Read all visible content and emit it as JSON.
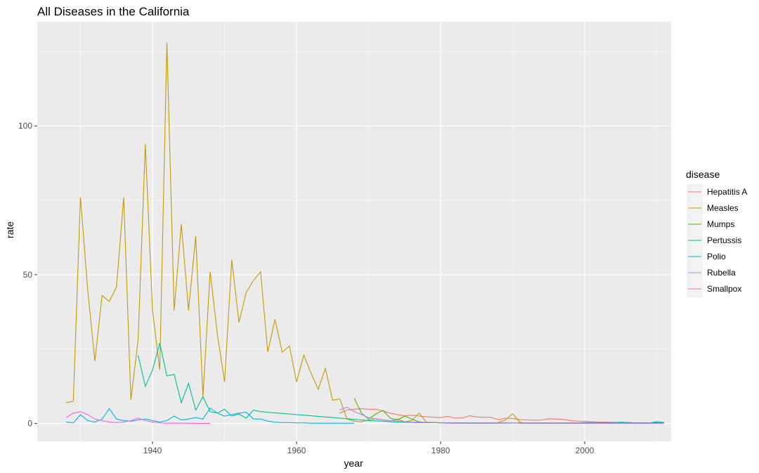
{
  "chart_data": {
    "type": "line",
    "title": "All Diseases in the California",
    "xlabel": "year",
    "ylabel": "rate",
    "xlim": [
      1924,
      2012
    ],
    "ylim": [
      -6,
      135
    ],
    "x_ticks": [
      1940,
      1960,
      1980,
      2000
    ],
    "y_ticks": [
      0,
      50,
      100
    ],
    "grid": true,
    "legend_placement": "right",
    "legend_title": "disease",
    "series": [
      {
        "name": "Hepatitis A",
        "color": "#F8766D",
        "x": [
          1966,
          1967,
          1968,
          1969,
          1970,
          1971,
          1972,
          1973,
          1974,
          1975,
          1976,
          1977,
          1978,
          1979,
          1980,
          1981,
          1982,
          1983,
          1984,
          1985,
          1986,
          1987,
          1988,
          1989,
          1990,
          1991,
          1992,
          1993,
          1994,
          1995,
          1996,
          1997,
          1998,
          1999,
          2000,
          2001,
          2002,
          2003,
          2004,
          2005,
          2006,
          2007,
          2008,
          2009,
          2010,
          2011
        ],
        "y": [
          3.5,
          4.5,
          4.8,
          5.0,
          4.8,
          4.8,
          4.2,
          3.5,
          3.0,
          2.6,
          2.8,
          2.5,
          2.3,
          2.1,
          2.0,
          2.4,
          1.8,
          1.9,
          2.6,
          2.2,
          2.1,
          2.1,
          1.3,
          1.8,
          1.7,
          1.3,
          1.2,
          1.1,
          1.2,
          1.6,
          1.5,
          1.4,
          1.0,
          0.8,
          0.7,
          0.6,
          0.5,
          0.5,
          0.4,
          0.3,
          0.3,
          0.2,
          0.2,
          0.2,
          0.2,
          0.2
        ]
      },
      {
        "name": "Measles",
        "color": "#C49A00",
        "x": [
          1928,
          1929,
          1930,
          1931,
          1932,
          1933,
          1934,
          1935,
          1936,
          1937,
          1938,
          1939,
          1940,
          1941,
          1942,
          1943,
          1944,
          1945,
          1946,
          1947,
          1948,
          1949,
          1950,
          1951,
          1952,
          1953,
          1954,
          1955,
          1956,
          1957,
          1958,
          1959,
          1960,
          1961,
          1962,
          1963,
          1964,
          1965,
          1966,
          1967,
          1968,
          1969,
          1970,
          1971,
          1972,
          1973,
          1974,
          1975,
          1976,
          1977,
          1978,
          1979,
          1980,
          1981,
          1982,
          1983,
          1984,
          1985,
          1986,
          1987,
          1988,
          1989,
          1990,
          1991,
          1992,
          1993,
          1994,
          1995,
          1996,
          1997,
          1998,
          1999,
          2000,
          2001,
          2002,
          2003,
          2004,
          2005,
          2006,
          2007,
          2008,
          2009,
          2010,
          2011
        ],
        "y": [
          7,
          7.5,
          76,
          45,
          21,
          43,
          41,
          46,
          76,
          8,
          28,
          94,
          38,
          18,
          128,
          38,
          67,
          38,
          63,
          9,
          51,
          30,
          14,
          55,
          34,
          44,
          48,
          51,
          24,
          35,
          24,
          26,
          14,
          23,
          17,
          11.5,
          18.5,
          7.8,
          8.3,
          1.5,
          0.8,
          0.6,
          1.2,
          1.6,
          1.2,
          0.9,
          1.5,
          0.6,
          1.0,
          3.5,
          0.5,
          0.4,
          0.3,
          0.2,
          0.1,
          0.1,
          0.1,
          0.1,
          0.1,
          0.1,
          0.3,
          1.2,
          3.3,
          0.4,
          0.1,
          0.05,
          0.05,
          0.05,
          0.05,
          0.05,
          0.05,
          0.05,
          0.05,
          0.05,
          0.05,
          0.05,
          0.05,
          0.05,
          0.05,
          0.05,
          0.05,
          0.05,
          0.05,
          0.05
        ]
      },
      {
        "name": "Mumps",
        "color": "#53B400",
        "x": [
          1968,
          1969,
          1970,
          1971,
          1972,
          1973,
          1974,
          1975,
          1976,
          1977,
          1978,
          1979,
          1980,
          1981,
          1982,
          1983,
          1984,
          1985,
          1986,
          1987,
          1988,
          1989,
          1990,
          1991,
          1992,
          1993,
          1994,
          1995,
          1996,
          1997,
          1998,
          1999,
          2000,
          2001,
          2002,
          2003,
          2004,
          2005,
          2006,
          2007,
          2008,
          2009,
          2010,
          2011
        ],
        "y": [
          8.5,
          3.5,
          1.5,
          3.2,
          4.4,
          1.8,
          1.2,
          2.5,
          1.5,
          0.6,
          0.3,
          0.3,
          0.2,
          0.2,
          0.2,
          0.2,
          0.1,
          0.1,
          0.1,
          0.1,
          0.1,
          0.2,
          0.2,
          0.1,
          0.1,
          0.1,
          0.1,
          0.1,
          0.1,
          0.1,
          0.1,
          0.1,
          0.1,
          0.1,
          0.1,
          0.1,
          0.1,
          0.1,
          0.4,
          0.1,
          0.1,
          0.1,
          0.3,
          0.1
        ]
      },
      {
        "name": "Pertussis",
        "color": "#00C094",
        "x": [
          1938,
          1939,
          1940,
          1941,
          1942,
          1943,
          1944,
          1945,
          1946,
          1947,
          1948,
          1949,
          1950,
          1951,
          1952,
          1953,
          1954,
          1955,
          1956,
          1957,
          1958,
          1959,
          1960,
          1961,
          1962,
          1963,
          1964,
          1965,
          1966,
          1967,
          1968,
          1969,
          1970,
          1971,
          1972,
          1973,
          1974,
          1975,
          1976,
          1977,
          1978,
          1979,
          1980,
          1981,
          1982,
          1983,
          1984,
          1985,
          1986,
          1987,
          1988,
          1989,
          1990,
          1991,
          1992,
          1993,
          1994,
          1995,
          1996,
          1997,
          1998,
          1999,
          2000,
          2001,
          2002,
          2003,
          2004,
          2005,
          2006,
          2007,
          2008,
          2009,
          2010,
          2011
        ],
        "y": [
          23,
          12.5,
          18,
          27,
          16,
          16.5,
          7,
          13.5,
          4.5,
          9,
          4,
          3.5,
          4.8,
          2.5,
          3.2,
          1.8,
          4.5,
          4,
          3.8,
          3.6,
          3.4,
          3.2,
          3,
          2.8,
          2.6,
          2.4,
          2.2,
          2,
          1.8,
          1.6,
          1.4,
          1.2,
          1.0,
          0.9,
          0.8,
          0.6,
          0.5,
          0.4,
          0.4,
          0.3,
          0.3,
          0.3,
          0.2,
          0.2,
          0.2,
          0.2,
          0.2,
          0.2,
          0.2,
          0.2,
          0.2,
          0.2,
          0.2,
          0.2,
          0.2,
          0.2,
          0.2,
          0.2,
          0.2,
          0.2,
          0.2,
          0.2,
          0.3,
          0.3,
          0.3,
          0.3,
          0.3,
          0.5,
          0.3,
          0.2,
          0.2,
          0.2,
          0.6,
          0.4
        ]
      },
      {
        "name": "Polio",
        "color": "#00B6EB",
        "x": [
          1928,
          1929,
          1930,
          1931,
          1932,
          1933,
          1934,
          1935,
          1936,
          1937,
          1938,
          1939,
          1940,
          1941,
          1942,
          1943,
          1944,
          1945,
          1946,
          1947,
          1948,
          1949,
          1950,
          1951,
          1952,
          1953,
          1954,
          1955,
          1956,
          1957,
          1958,
          1959,
          1960,
          1961,
          1962,
          1963,
          1964,
          1965,
          1966,
          1967,
          1968
        ],
        "y": [
          0.5,
          0.2,
          3,
          1,
          0.5,
          1.5,
          5,
          1.5,
          1,
          0.8,
          1.2,
          1.5,
          1,
          0.5,
          1,
          2.5,
          1.2,
          1.5,
          2,
          1.5,
          5.2,
          3.5,
          2.5,
          3,
          3.5,
          3.8,
          1.5,
          1.5,
          0.8,
          0.5,
          0.3,
          0.3,
          0.2,
          0.2,
          0.1,
          0.1,
          0.1,
          0.1,
          0.1,
          0.1,
          0.1
        ]
      },
      {
        "name": "Rubella",
        "color": "#A58AFF",
        "x": [
          1966,
          1967,
          1968,
          1969,
          1970,
          1971,
          1972,
          1973,
          1974,
          1975,
          1976,
          1977,
          1978,
          1979,
          1980,
          1981,
          1982,
          1983,
          1984,
          1985,
          1986,
          1987,
          1988,
          1989,
          1990,
          1991,
          1992,
          1993,
          1994,
          1995,
          1996,
          1997,
          1998,
          1999,
          2000,
          2001,
          2002,
          2003,
          2004,
          2005,
          2006,
          2007,
          2008,
          2009,
          2010,
          2011
        ],
        "y": [
          4.5,
          5.5,
          4,
          3,
          2,
          1.5,
          1.2,
          1,
          0.8,
          0.6,
          0.5,
          0.5,
          0.4,
          0.3,
          0.2,
          0.1,
          0.1,
          0.1,
          0.1,
          0.1,
          0.1,
          0.1,
          0.1,
          0.1,
          0.2,
          0.1,
          0.1,
          0.1,
          0.1,
          0.1,
          0.1,
          0.1,
          0.1,
          0.1,
          0.05,
          0.05,
          0.05,
          0.05,
          0.05,
          0.05,
          0.05,
          0.05,
          0.05,
          0.05,
          0.05,
          0.05
        ]
      },
      {
        "name": "Smallpox",
        "color": "#FB61D7",
        "x": [
          1928,
          1929,
          1930,
          1931,
          1932,
          1933,
          1934,
          1935,
          1936,
          1937,
          1938,
          1939,
          1940,
          1941,
          1942,
          1943,
          1944,
          1945,
          1946,
          1947,
          1948
        ],
        "y": [
          2,
          3.5,
          4,
          3,
          1.5,
          1,
          0.5,
          0.3,
          0.5,
          1,
          1.8,
          1,
          0.5,
          0.2,
          0.1,
          0.1,
          0.1,
          0.1,
          0.05,
          0.05,
          0.05
        ]
      }
    ]
  }
}
